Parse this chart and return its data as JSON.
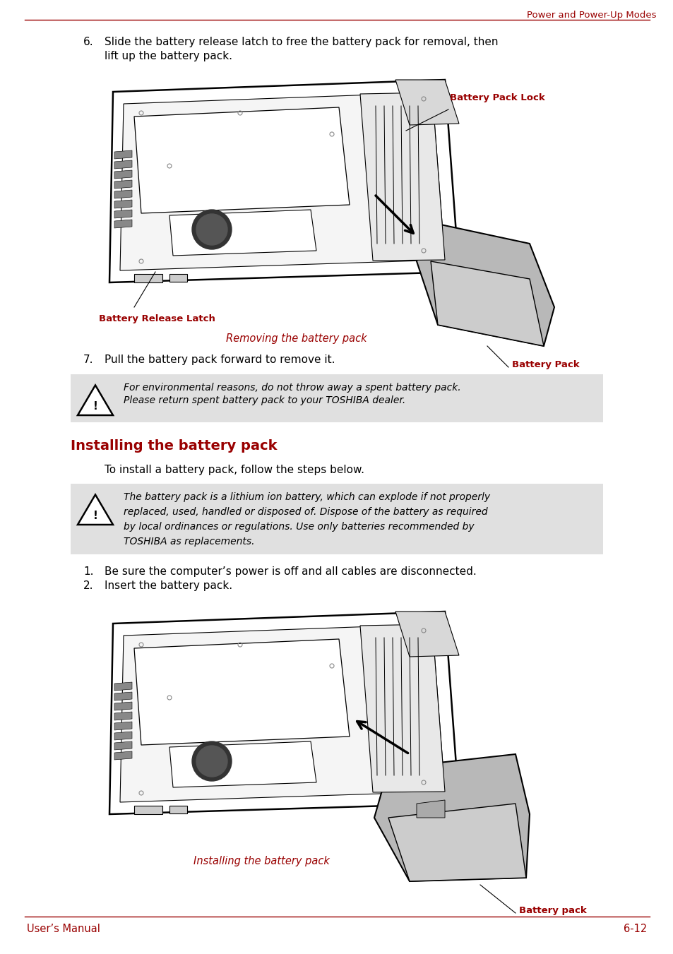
{
  "header_text": "Power and Power-Up Modes",
  "header_color": "#990000",
  "footer_left": "User’s Manual",
  "footer_right": "6-12",
  "footer_color": "#990000",
  "line_color": "#990000",
  "bg_color": "#ffffff",
  "caption1": "Removing the battery pack",
  "caption2": "Installing the battery pack",
  "section_title": "Installing the battery pack",
  "section_title_color": "#990000",
  "install_intro": "To install a battery pack, follow the steps below.",
  "warning1_line1": "For environmental reasons, do not throw away a spent battery pack.",
  "warning1_line2": "Please return spent battery pack to your TOSHIBA dealer.",
  "warning2_line1": "The battery pack is a lithium ion battery, which can explode if not properly",
  "warning2_line2": "replaced, used, handled or disposed of. Dispose of the battery as required",
  "warning2_line3": "by local ordinances or regulations. Use only batteries recommended by",
  "warning2_line4": "TOSHIBA as replacements.",
  "warning_bg": "#e0e0e0",
  "label_battery_release": "Battery Release Latch",
  "label_battery_pack_lock": "Battery Pack Lock",
  "label_battery_pack1": "Battery Pack",
  "label_battery_pack2": "Battery pack",
  "label_color": "#990000",
  "step6_line1": "Slide the battery release latch to free the battery pack for removal, then",
  "step6_line2": "lift up the battery pack.",
  "step7_text": "Pull the battery pack forward to remove it.",
  "step1_install": "Be sure the computer’s power is off and all cables are disconnected.",
  "step2_install": "Insert the battery pack."
}
